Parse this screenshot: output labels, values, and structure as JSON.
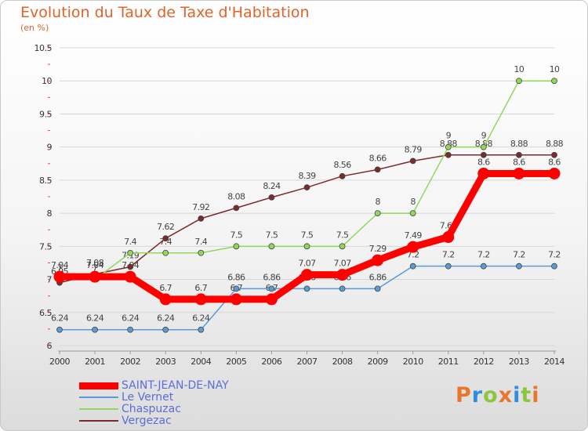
{
  "title": "Evolution du Taux de Taxe d'Habitation",
  "unit_label": "(en %)",
  "logo": {
    "text": "Proxiti",
    "letter_colors": [
      "#e8762c",
      "#2f8ee0",
      "#8cc63f",
      "#e8762c",
      "#2f8ee0",
      "#8cc63f",
      "#e8762c"
    ]
  },
  "chart_data": {
    "type": "line",
    "title": "Evolution du Taux de Taxe d'Habitation",
    "ylabel": "(en %)",
    "xlabel": "",
    "x": [
      "2000",
      "2001",
      "2002",
      "2003",
      "2004",
      "2005",
      "2006",
      "2007",
      "2008",
      "2009",
      "2010",
      "2011",
      "2012",
      "2013",
      "2014"
    ],
    "ylim": [
      6,
      10.5
    ],
    "yticks": [
      "6",
      "6.5",
      "7",
      "7.5",
      "8",
      "8.5",
      "9",
      "9.5",
      "10",
      "10.5"
    ],
    "grid": "horizontal",
    "legend_position": "bottom-left",
    "series": [
      {
        "name": "SAINT-JEAN-DE-NAY",
        "color": "#ff0000",
        "values": [
          7.04,
          7.04,
          7.04,
          6.7,
          6.7,
          6.7,
          6.7,
          7.07,
          7.07,
          7.29,
          7.49,
          7.64,
          8.6,
          8.6,
          8.6
        ],
        "labels": [
          "7.04",
          "7.04",
          "7.04",
          "6.7",
          "6.7",
          "6.7",
          "6.7",
          "7.07",
          "7.07",
          "7.29",
          "7.49",
          "7.64",
          "8.6",
          "8.6",
          "8.6"
        ]
      },
      {
        "name": "Le Vernet",
        "color": "#5b9bd5",
        "values": [
          6.24,
          6.24,
          6.24,
          6.24,
          6.24,
          6.86,
          6.86,
          6.86,
          6.86,
          6.86,
          7.2,
          7.2,
          7.2,
          7.2,
          7.2
        ],
        "labels": [
          "6.24",
          "6.24",
          "6.24",
          "6.24",
          "6.24",
          "6.86",
          "6.86",
          "6.86",
          "6.86",
          "6.86",
          "7.2",
          "7.2",
          "7.2",
          "7.2",
          "7.2"
        ]
      },
      {
        "name": "Chaspuzac",
        "color": "#8fd85c",
        "values": [
          7.0,
          7.0,
          7.4,
          7.4,
          7.4,
          7.5,
          7.5,
          7.5,
          7.5,
          8.0,
          8.0,
          9.0,
          9.0,
          10.0,
          10.0
        ],
        "labels": [
          "7",
          "7",
          "7.4",
          "7.4",
          "7.4",
          "7.5",
          "7.5",
          "7.5",
          "7.5",
          "8",
          "8",
          "9",
          "9",
          "10",
          "10"
        ]
      },
      {
        "name": "Vergezac",
        "color": "#7b2a2e",
        "values": [
          6.95,
          7.08,
          7.19,
          7.62,
          7.92,
          8.08,
          8.24,
          8.39,
          8.56,
          8.66,
          8.79,
          8.88,
          8.88,
          8.88,
          8.88
        ],
        "labels": [
          "6.95",
          "7.08",
          "7.19",
          "7.62",
          "7.92",
          "8.08",
          "8.24",
          "8.39",
          "8.56",
          "8.66",
          "8.79",
          "8.88",
          "8.88",
          "8.88",
          "8.88"
        ]
      }
    ]
  }
}
